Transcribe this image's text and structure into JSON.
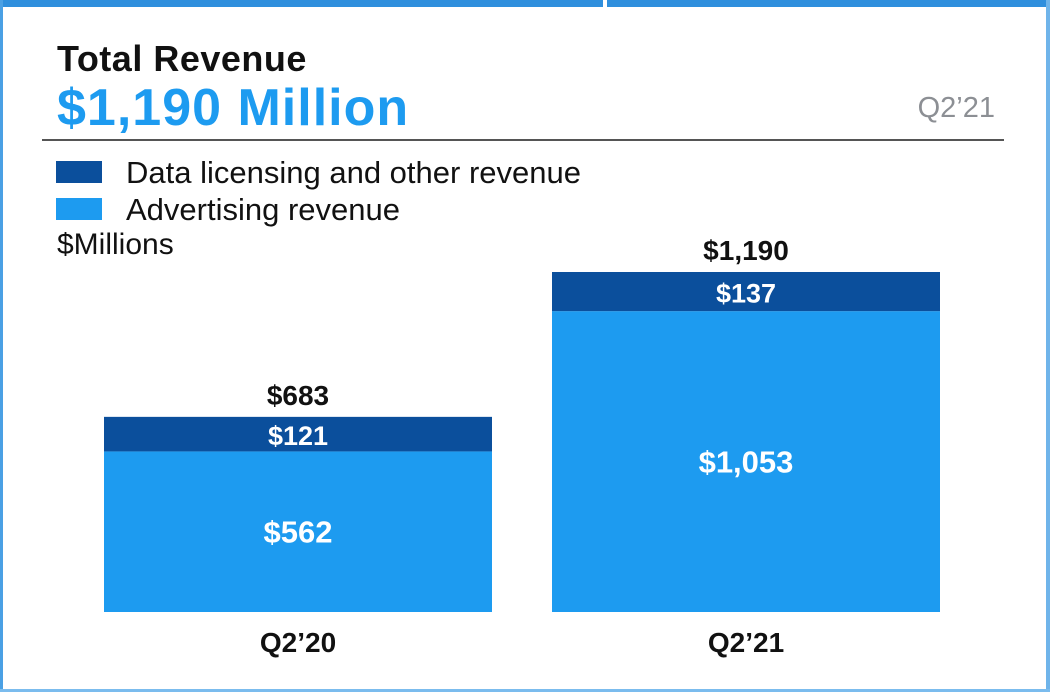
{
  "header": {
    "title": "Total Revenue",
    "value": "$1,190 Million",
    "period": "Q2’21"
  },
  "legend": [
    {
      "label": "Data licensing and other revenue",
      "color": "#0b4f9c"
    },
    {
      "label": "Advertising revenue",
      "color": "#1d9bf0"
    }
  ],
  "unit_label": "$Millions",
  "chart_data": {
    "type": "bar",
    "stacked": true,
    "title": "Total Revenue",
    "ylabel": "$Millions",
    "categories": [
      "Q2’20",
      "Q2’21"
    ],
    "series": [
      {
        "name": "Advertising revenue",
        "values": [
          562,
          1053
        ],
        "labels": [
          "$562",
          "$1,053"
        ],
        "color": "#1d9bf0"
      },
      {
        "name": "Data licensing and other revenue",
        "values": [
          121,
          137
        ],
        "labels": [
          "$121",
          "$137"
        ],
        "color": "#0b4f9c"
      }
    ],
    "totals": [
      683,
      1190
    ],
    "total_labels": [
      "$683",
      "$1,190"
    ],
    "ylim": [
      0,
      1190
    ],
    "grid": false,
    "legend_position": "top-left"
  }
}
